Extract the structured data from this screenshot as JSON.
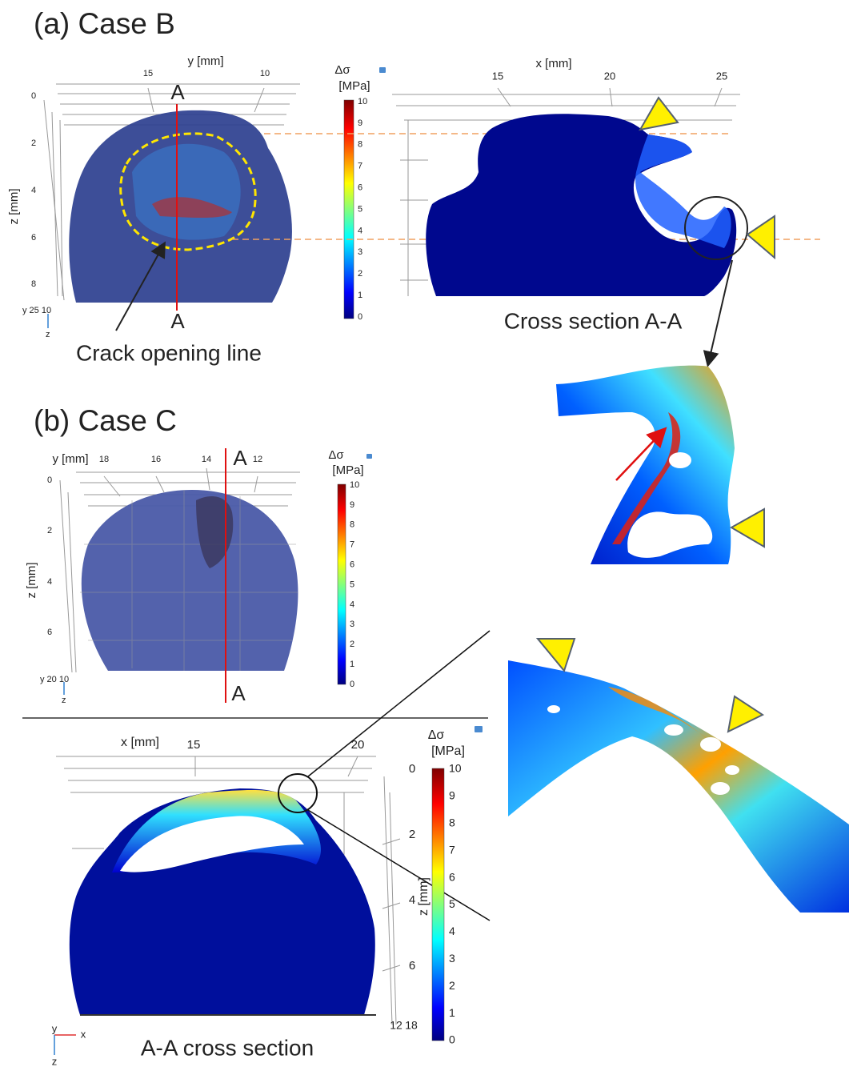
{
  "panel_a": {
    "title": "(a) Case B",
    "view_3d": {
      "y_axis_label": "y [mm]",
      "y_ticks": [
        15,
        10
      ],
      "z_axis_label": "z [mm]",
      "z_ticks": [
        0,
        2,
        4,
        6,
        8
      ],
      "triad_label": "y 25 10",
      "triad_z": "z",
      "section_marks": [
        "A",
        "A"
      ],
      "annotation": "Crack opening line"
    },
    "colorbar": {
      "symbol": "Δσ",
      "unit": "[MPa]",
      "ticks": [
        10,
        9,
        8,
        7,
        6,
        5,
        4,
        3,
        2,
        1,
        0
      ]
    },
    "section": {
      "x_axis_label": "x [mm]",
      "x_ticks": [
        15,
        20,
        25
      ],
      "caption": "Cross section A-A"
    }
  },
  "panel_b": {
    "title": "(b) Case C",
    "view_3d": {
      "y_axis_label": "y [mm]",
      "y_ticks": [
        18,
        16,
        14,
        12
      ],
      "z_axis_label": "z [mm]",
      "z_ticks": [
        0,
        2,
        4,
        6
      ],
      "triad_label": "y 20 10",
      "triad_z": "z",
      "section_marks": [
        "A",
        "A"
      ]
    },
    "colorbar": {
      "symbol": "Δσ",
      "unit": "[MPa]",
      "ticks": [
        10,
        9,
        8,
        7,
        6,
        5,
        4,
        3,
        2,
        1,
        0
      ]
    },
    "section": {
      "x_axis_label": "x [mm]",
      "x_ticks": [
        15,
        20
      ],
      "z_axis_label": "z [mm]",
      "z_ticks": [
        0,
        2,
        4,
        6
      ],
      "depth_ticks": [
        12,
        18
      ],
      "triad_y": "y",
      "triad_x": "x",
      "triad_z": "z",
      "caption": "A-A cross section"
    },
    "section_colorbar": {
      "symbol": "Δσ",
      "unit": "[MPa]",
      "ticks": [
        10,
        9,
        8,
        7,
        6,
        5,
        4,
        3,
        2,
        1,
        0
      ]
    }
  }
}
